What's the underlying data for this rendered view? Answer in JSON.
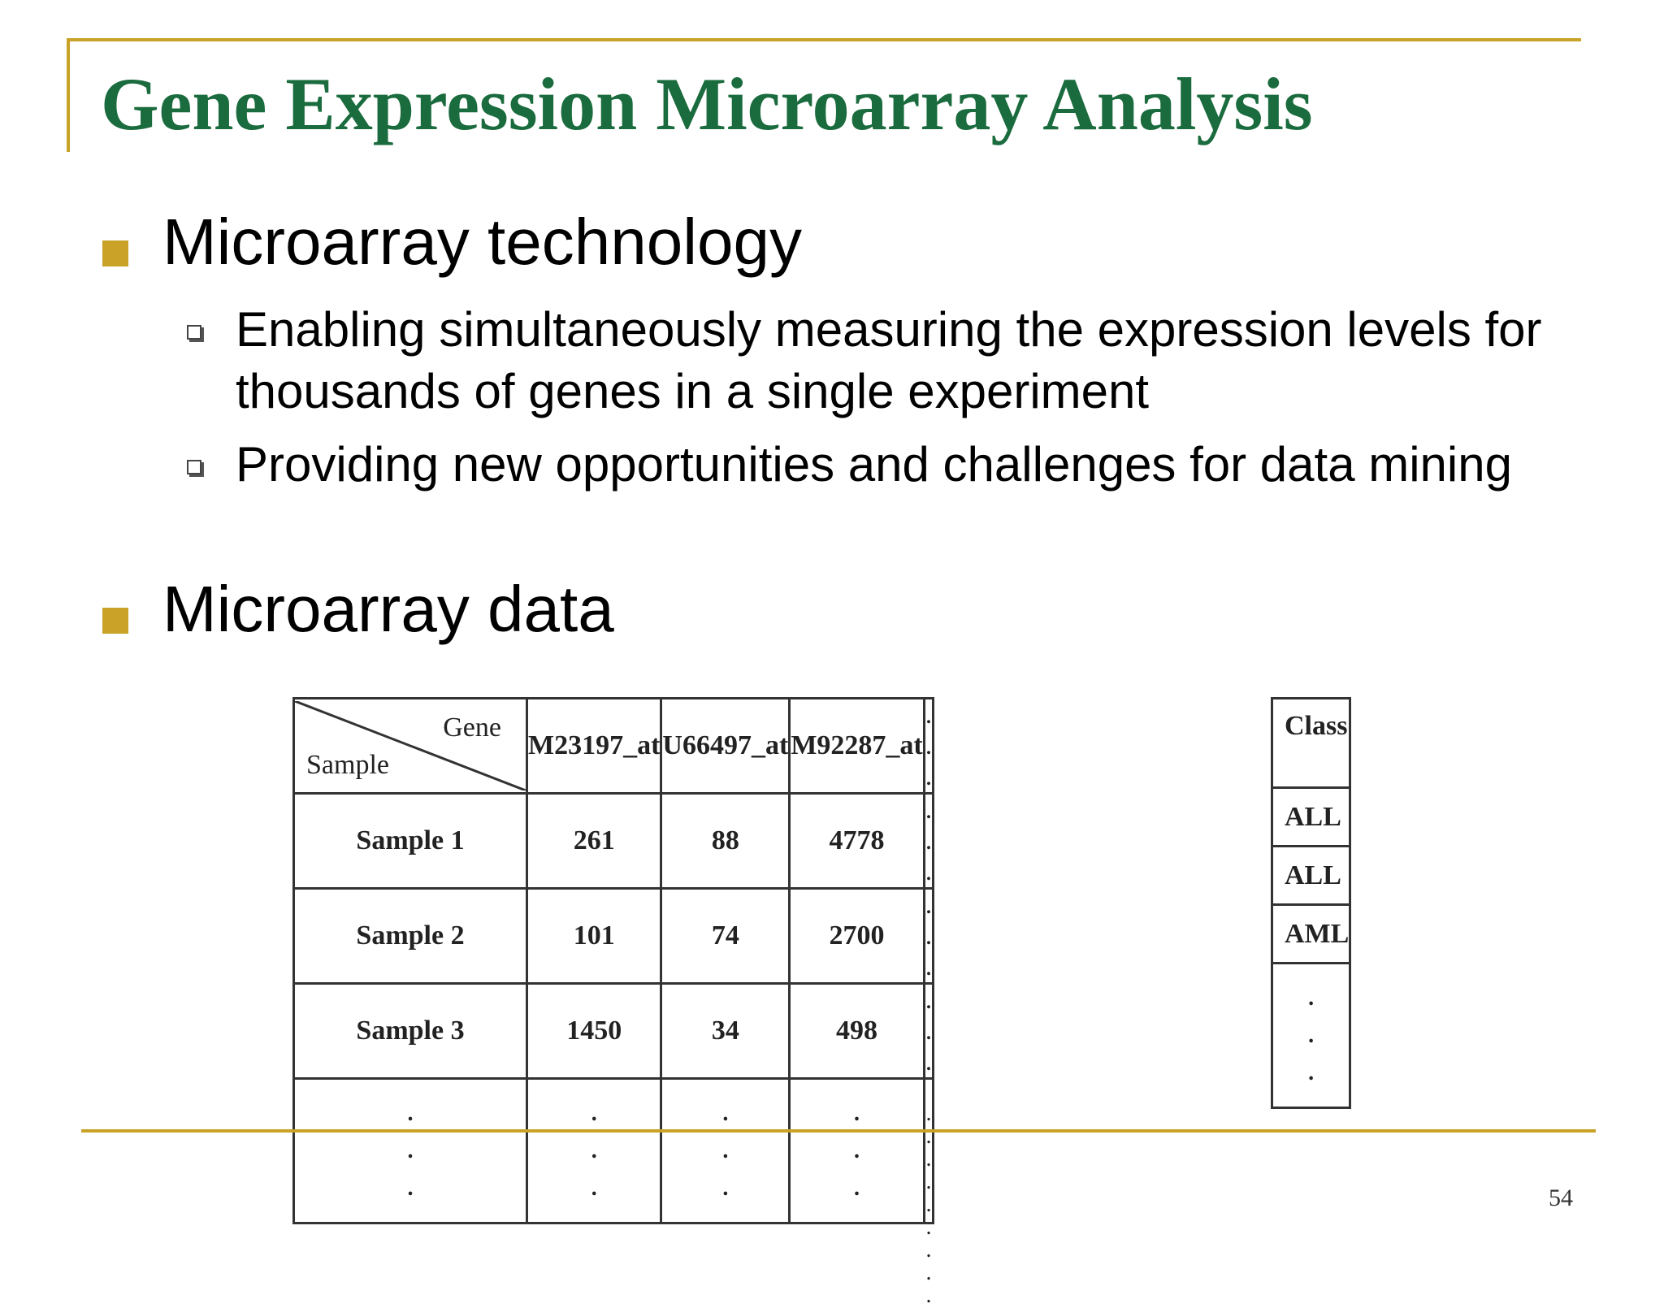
{
  "slide": {
    "title": "Gene Expression Microarray Analysis",
    "page_number": "54",
    "accent_color": "#c9a227",
    "title_color": "#1a6b3d"
  },
  "bullets": [
    {
      "text": "Microarray technology",
      "subitems": [
        "Enabling simultaneously measuring the expression levels for thousands of genes in a single experiment",
        "Providing new opportunities and challenges for data mining"
      ]
    },
    {
      "text": "Microarray data",
      "subitems": []
    }
  ],
  "table": {
    "corner_gene": "Gene",
    "corner_sample": "Sample",
    "columns": [
      "M23197_at",
      "U66497_at",
      "M92287_at",
      ". . ."
    ],
    "rows": [
      {
        "label": "Sample 1",
        "values": [
          "261",
          "88",
          "4778",
          ". . ."
        ]
      },
      {
        "label": "Sample 2",
        "values": [
          "101",
          "74",
          "2700",
          ". . ."
        ]
      },
      {
        "label": "Sample 3",
        "values": [
          "1450",
          "34",
          "498",
          ". . ."
        ]
      }
    ],
    "ellipsis_dot": ".",
    "ellipsis_wide": ". . .",
    "class_header": "Class",
    "classes": [
      "ALL",
      "ALL",
      "AML"
    ]
  }
}
